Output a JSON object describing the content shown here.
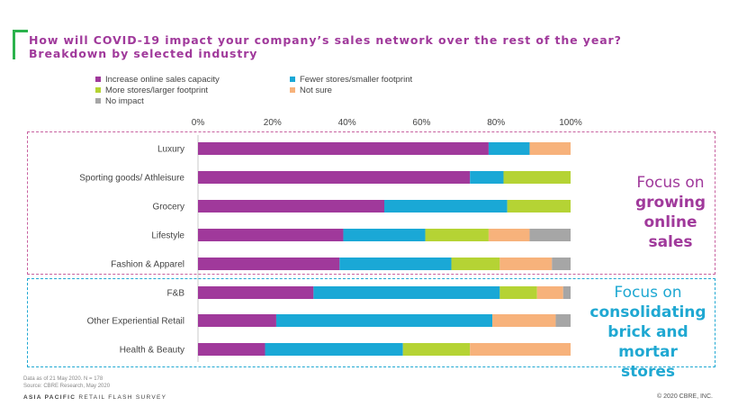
{
  "title": {
    "line1": "How will COVID-19 impact your company’s sales network over the rest of the year?",
    "line2": "Breakdown by selected industry"
  },
  "colors": {
    "accent_green": "#2bb24c",
    "online": "#a0399b",
    "brick": "#1fa8d2"
  },
  "chart_data": {
    "type": "bar",
    "orientation": "horizontal",
    "stacked": true,
    "categories": [
      "Luxury",
      "Sporting goods/ Athleisure",
      "Grocery",
      "Lifestyle",
      "Fashion & Apparel",
      "F&B",
      "Other Experiential Retail",
      "Health & Beauty"
    ],
    "series": [
      {
        "name": "Increase online sales capacity",
        "color": "#a0399b",
        "values": [
          78,
          73,
          50,
          39,
          38,
          31,
          21,
          18
        ]
      },
      {
        "name": "Fewer stores/smaller footprint",
        "color": "#1aa8d6",
        "values": [
          11,
          9,
          33,
          22,
          30,
          50,
          58,
          37
        ]
      },
      {
        "name": "More stores/larger footprint",
        "color": "#b5d334",
        "values": [
          0,
          18,
          17,
          17,
          13,
          10,
          0,
          18
        ]
      },
      {
        "name": "Not sure",
        "color": "#f7b27b",
        "values": [
          11,
          0,
          0,
          11,
          14,
          7,
          17,
          27
        ]
      },
      {
        "name": "No impact",
        "color": "#a6a6a6",
        "values": [
          0,
          0,
          0,
          11,
          5,
          2,
          4,
          0
        ]
      }
    ],
    "x_ticks": [
      "0%",
      "20%",
      "40%",
      "60%",
      "80%",
      "100%"
    ],
    "xlim": [
      0,
      100
    ],
    "legend_position": "top-left",
    "grid": false
  },
  "annotations": {
    "online": {
      "line1": "Focus on",
      "line2": "growing",
      "line3": "online sales"
    },
    "brick": {
      "line1": "Focus on",
      "line2": "consolidating",
      "line3": "brick and mortar",
      "line4": "stores"
    }
  },
  "footer": {
    "note1": "Data as of 21 May 2020. N = 178",
    "note2": "Source: CBRE Research, May 2020",
    "brand_bold": "ASIA PACIFIC",
    "brand_rest": " RETAIL FLASH SURVEY",
    "copyright": "© 2020 CBRE, INC."
  }
}
